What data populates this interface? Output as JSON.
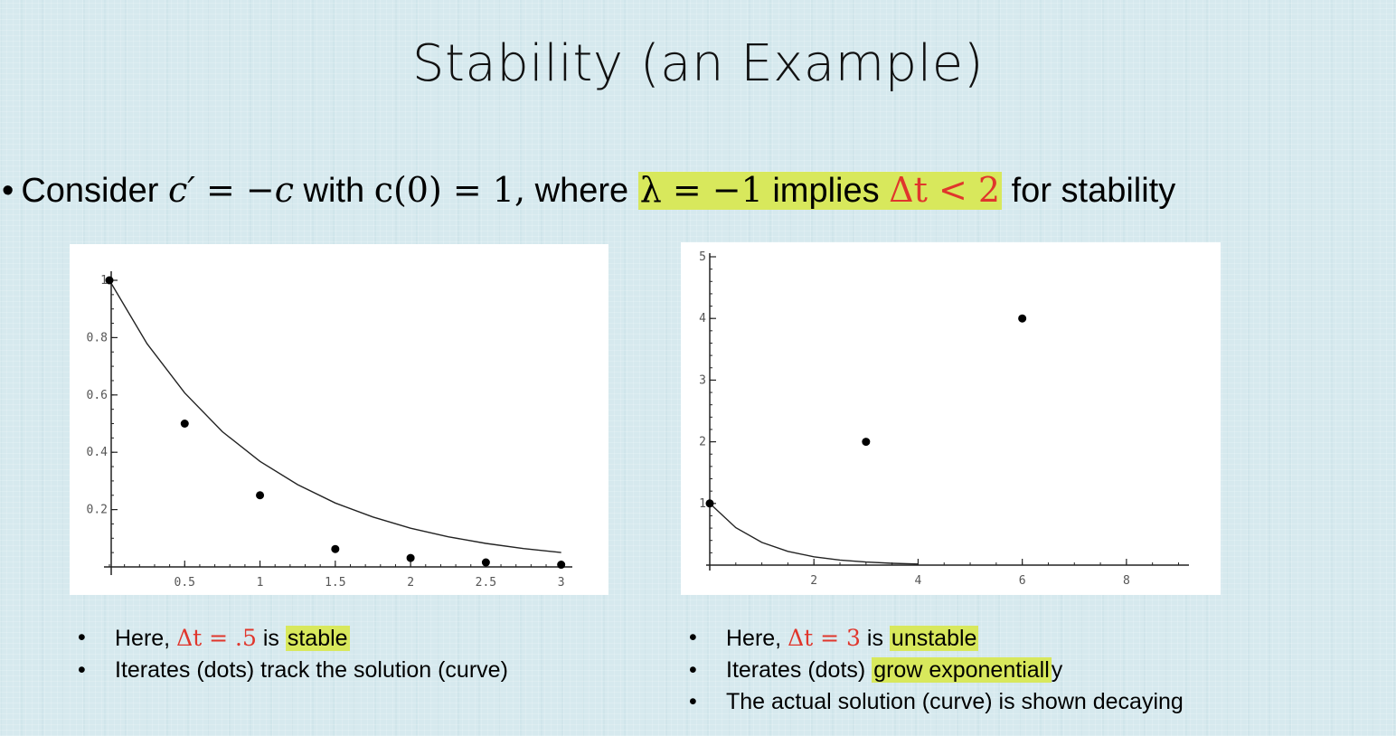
{
  "slide": {
    "title": "Stability (an Example)",
    "bullet": {
      "consider": "Consider",
      "ode": "c′ = −c",
      "with": "with",
      "ic": "c(0) = 1,",
      "where": "where",
      "lambda": "λ = −1",
      "implies": "implies",
      "cond": "Δt < 2",
      "for_stability": "for stability"
    },
    "left_notes": {
      "n1_pre": "Here,",
      "n1_math": "Δt = .5",
      "n1_mid": "is",
      "n1_hl": "stable",
      "n2": "Iterates (dots) track the solution (curve)"
    },
    "right_notes": {
      "n1_pre": "Here,",
      "n1_math": "Δt = 3",
      "n1_mid": "is",
      "n1_hl": "unstable",
      "n2_pre": "Iterates (dots)",
      "n2_hl": "grow exponentiall",
      "n2_post": "y",
      "n3": "The actual solution (curve) is shown decaying"
    },
    "colors": {
      "highlight": "#d8e85c",
      "red": "#e0362c",
      "background": "#d6e9ee"
    }
  },
  "chart_data": [
    {
      "type": "scatter",
      "title": "",
      "xlabel": "",
      "ylabel": "",
      "xlim": [
        0,
        3.05
      ],
      "ylim": [
        0,
        1.0
      ],
      "x_ticks": [
        0.5,
        1,
        1.5,
        2,
        2.5,
        3
      ],
      "x_tick_labels": [
        "0.5",
        "1",
        "1.5",
        "2",
        "2.5",
        "3"
      ],
      "y_ticks": [
        0.2,
        0.4,
        0.6,
        0.8,
        1
      ],
      "y_tick_labels": [
        "0.2",
        "0.4",
        "0.6",
        "0.8",
        "1"
      ],
      "series": [
        {
          "name": "iterates (dots)",
          "kind": "points",
          "x": [
            0,
            0.5,
            1,
            1.5,
            2,
            2.5,
            3
          ],
          "y": [
            1,
            0.5,
            0.25,
            0.0625,
            0.03125,
            0.015625,
            0.0078
          ]
        },
        {
          "name": "solution (curve)",
          "kind": "line",
          "function": "exp(-t)",
          "x": [
            0,
            0.25,
            0.5,
            0.75,
            1,
            1.25,
            1.5,
            1.75,
            2,
            2.25,
            2.5,
            2.75,
            3
          ],
          "y": [
            1,
            0.779,
            0.607,
            0.472,
            0.368,
            0.287,
            0.223,
            0.174,
            0.135,
            0.105,
            0.082,
            0.064,
            0.05
          ]
        }
      ]
    },
    {
      "type": "scatter",
      "title": "",
      "xlabel": "",
      "ylabel": "",
      "xlim": [
        0,
        9.2
      ],
      "ylim": [
        0,
        5
      ],
      "x_ticks": [
        2,
        4,
        6,
        8
      ],
      "x_tick_labels": [
        "2",
        "4",
        "6",
        "8"
      ],
      "y_ticks": [
        1,
        2,
        3,
        4,
        5
      ],
      "y_tick_labels": [
        "1",
        "2",
        "3",
        "4",
        "5"
      ],
      "series": [
        {
          "name": "iterates (dots)",
          "kind": "points",
          "x": [
            0,
            3,
            6
          ],
          "y": [
            1,
            2,
            4
          ]
        },
        {
          "name": "solution (curve)",
          "kind": "line",
          "function": "exp(-t)",
          "x": [
            0,
            0.5,
            1,
            1.5,
            2,
            2.5,
            3,
            3.5,
            4
          ],
          "y": [
            1,
            0.607,
            0.368,
            0.223,
            0.135,
            0.082,
            0.05,
            0.03,
            0.018
          ]
        }
      ]
    }
  ]
}
